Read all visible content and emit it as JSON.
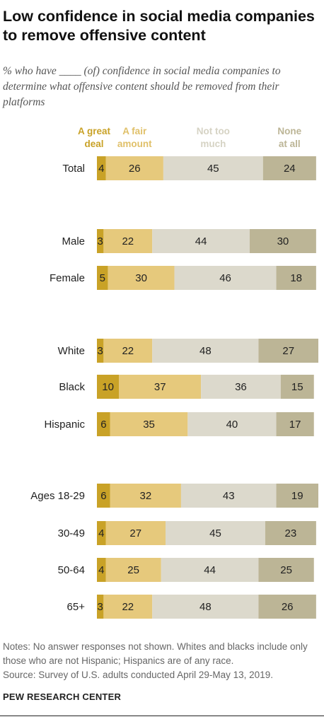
{
  "title": "Low confidence in social media companies to remove offensive content",
  "subtitle": "% who have ____ (of) confidence in social media companies to determine what offensive content should be removed from their platforms",
  "notes": "Notes: No answer responses not shown. Whites and blacks include only those who are not Hispanic; Hispanics are of any race.",
  "source": "Source: Survey of U.S. adults conducted April 29-May 13, 2019.",
  "brand": "PEW RESEARCH CENTER",
  "colors": [
    "#c9a227",
    "#e6c97c",
    "#dcd9cc",
    "#bcb596"
  ],
  "legend_colors": [
    "#c9a227",
    "#e0c069",
    "#d6d3c4",
    "#bcb596"
  ],
  "chart_data": {
    "type": "bar",
    "orientation": "horizontal-stacked",
    "series": [
      {
        "name": "A great deal",
        "label_lines": [
          "A great",
          "deal"
        ],
        "values": [
          4,
          3,
          5,
          3,
          10,
          6,
          6,
          4,
          4,
          3
        ]
      },
      {
        "name": "A fair amount",
        "label_lines": [
          "A fair",
          "amount"
        ],
        "values": [
          26,
          22,
          30,
          22,
          37,
          35,
          32,
          27,
          25,
          22
        ]
      },
      {
        "name": "Not too much",
        "label_lines": [
          "Not too",
          "much"
        ],
        "values": [
          45,
          44,
          46,
          48,
          36,
          40,
          43,
          45,
          44,
          48
        ]
      },
      {
        "name": "None at all",
        "label_lines": [
          "None",
          "at all"
        ],
        "values": [
          24,
          30,
          18,
          27,
          15,
          17,
          19,
          23,
          25,
          26
        ]
      }
    ],
    "categories": [
      "Total",
      "Male",
      "Female",
      "White",
      "Black",
      "Hispanic",
      "Ages 18-29",
      "30-49",
      "50-64",
      "65+"
    ],
    "groups": [
      [
        0
      ],
      [
        1,
        2
      ],
      [
        3,
        4,
        5
      ],
      [
        6,
        7,
        8,
        9
      ]
    ],
    "xlim": [
      0,
      100
    ],
    "legend": "top"
  }
}
